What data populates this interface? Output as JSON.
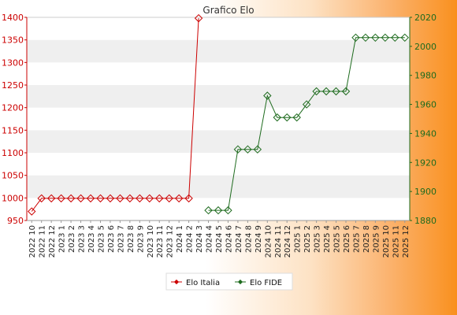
{
  "chart_data": {
    "type": "line",
    "title": "Grafico Elo",
    "x": [
      "2022 10",
      "2022 11",
      "2022 12",
      "2023 1",
      "2023 2",
      "2023 3",
      "2023 4",
      "2023 5",
      "2023 6",
      "2023 7",
      "2023 8",
      "2023 9",
      "2023 10",
      "2023 11",
      "2023 12",
      "2024 1",
      "2024 2",
      "2024 3",
      "2024 4",
      "2024 5",
      "2024 6",
      "2024 7",
      "2024 8",
      "2024 9",
      "2024 10",
      "2024 11",
      "2024 12",
      "2025 1",
      "2025 2",
      "2025 3",
      "2025 4",
      "2025 5",
      "2025 6",
      "2025 7",
      "2025 8",
      "2025 9",
      "2025 10",
      "2025 11",
      "2025 12"
    ],
    "y_left": {
      "ylim": [
        950,
        1400
      ],
      "ticks": [
        950,
        1000,
        1050,
        1100,
        1150,
        1200,
        1250,
        1300,
        1350,
        1400
      ]
    },
    "y_right": {
      "ylim": [
        1880,
        2020
      ],
      "ticks": [
        1880,
        1900,
        1920,
        1940,
        1960,
        1980,
        2000,
        2020
      ]
    },
    "series": [
      {
        "name": "Elo Italia",
        "axis": "left",
        "color": "#cc0000",
        "values": [
          970,
          999,
          999,
          999,
          999,
          999,
          999,
          999,
          999,
          999,
          999,
          999,
          999,
          999,
          999,
          999,
          999,
          1398,
          null,
          null,
          null,
          null,
          null,
          null,
          null,
          null,
          null,
          null,
          null,
          null,
          null,
          null,
          null,
          null,
          null,
          null,
          null,
          null,
          null
        ]
      },
      {
        "name": "Elo FIDE",
        "axis": "right",
        "color": "#1e6b1e",
        "values": [
          null,
          null,
          null,
          null,
          null,
          null,
          null,
          null,
          null,
          null,
          null,
          null,
          null,
          null,
          null,
          null,
          null,
          null,
          1887,
          1887,
          1887,
          1929,
          1929,
          1929,
          1966,
          1951,
          1951,
          1951,
          1960,
          1969,
          1969,
          1969,
          1969,
          2006,
          2006,
          2006,
          2006,
          2006,
          2006
        ]
      }
    ],
    "grid": "horizontal bands",
    "legend": "bottom-center"
  }
}
